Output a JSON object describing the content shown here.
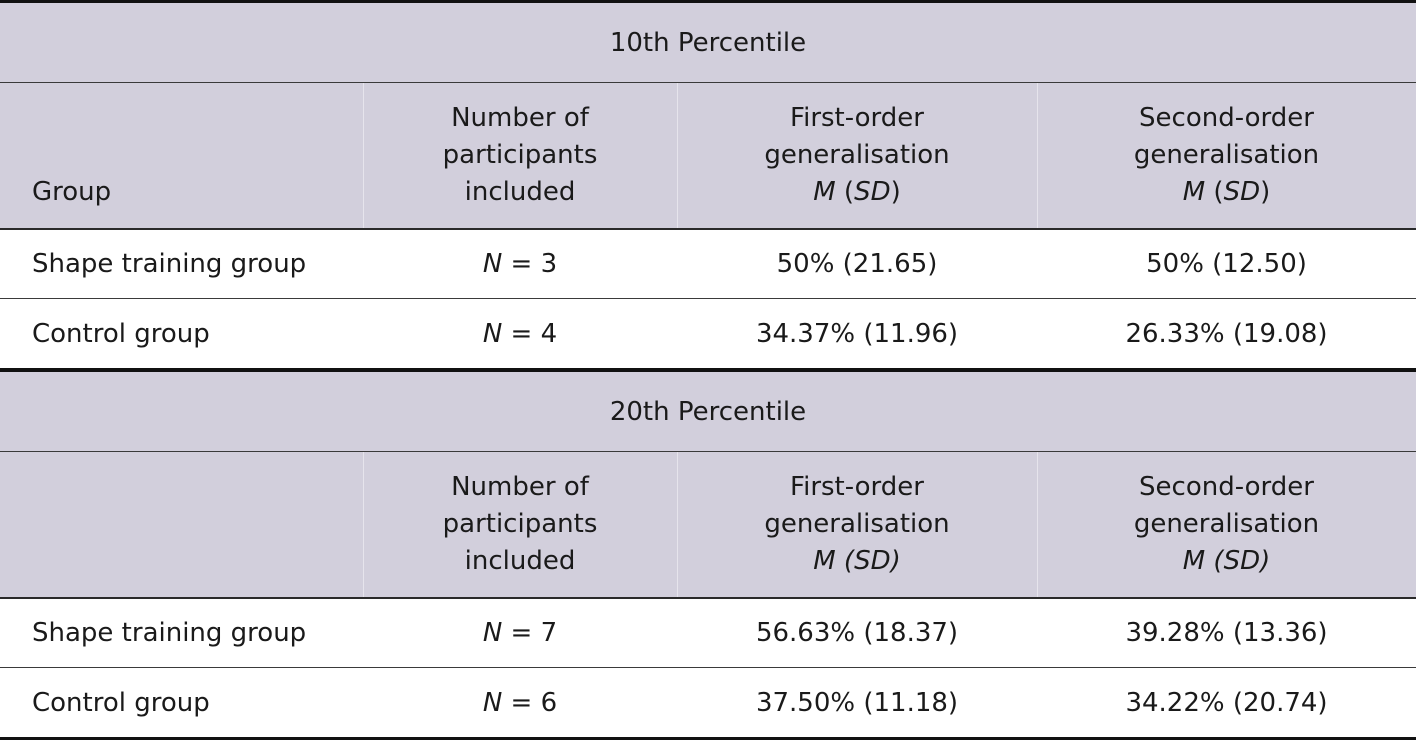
{
  "table": {
    "sections": [
      {
        "title": "10th Percentile",
        "headers": {
          "group": "Group",
          "n_line1": "Number of",
          "n_line2": "participants",
          "n_line3": "included",
          "first_line1": "First-order",
          "first_line2": "generalisation",
          "first_m": "M",
          "first_sd": "SD",
          "second_line1": "Second-order",
          "second_line2": "generalisation",
          "second_m": "M",
          "second_sd": "SD"
        },
        "rows": [
          {
            "group": "Shape training group",
            "n_symbol": "N",
            "n_value": " = 3",
            "first": "50% (21.65)",
            "second": "50% (12.50)"
          },
          {
            "group": "Control group",
            "n_symbol": "N",
            "n_value": " = 4",
            "first": "34.37% (11.96)",
            "second": "26.33% (19.08)"
          }
        ]
      },
      {
        "title": "20th Percentile",
        "headers": {
          "n_line1": "Number of",
          "n_line2": "participants",
          "n_line3": "included",
          "first_line1": "First-order",
          "first_line2": "generalisation",
          "first_msd": "M (SD)",
          "second_line1": "Second-order",
          "second_line2": "generalisation",
          "second_msd": "M (SD)"
        },
        "rows": [
          {
            "group": "Shape training group",
            "n_symbol": "N",
            "n_value": " = 7",
            "first": "56.63% (18.37)",
            "second": "39.28% (13.36)"
          },
          {
            "group": "Control group",
            "n_symbol": "N",
            "n_value": " = 6",
            "first": "37.50% (11.18)",
            "second": "34.22% (20.74)"
          }
        ]
      }
    ]
  },
  "colors": {
    "header_bg": "#d2cfdc",
    "text": "#1a1a1a",
    "rule": "#111111"
  }
}
